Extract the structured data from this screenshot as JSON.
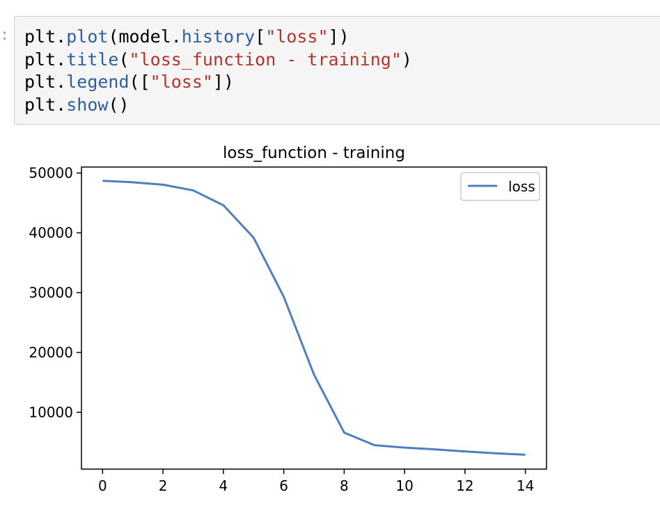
{
  "notebook": {
    "prompt": ":",
    "code_lines": [
      [
        {
          "text": "plt.",
          "style": "plain"
        },
        {
          "text": "plot",
          "style": "attr"
        },
        {
          "text": "(model.",
          "style": "plain"
        },
        {
          "text": "history",
          "style": "attr"
        },
        {
          "text": "[",
          "style": "plain"
        },
        {
          "text": "\"loss\"",
          "style": "str"
        },
        {
          "text": "])",
          "style": "plain"
        }
      ],
      [
        {
          "text": "plt.",
          "style": "plain"
        },
        {
          "text": "title",
          "style": "attr"
        },
        {
          "text": "(",
          "style": "plain"
        },
        {
          "text": "\"loss_function - training\"",
          "style": "str"
        },
        {
          "text": ")",
          "style": "plain"
        }
      ],
      [
        {
          "text": "plt.",
          "style": "plain"
        },
        {
          "text": "legend",
          "style": "attr"
        },
        {
          "text": "([",
          "style": "plain"
        },
        {
          "text": "\"loss\"",
          "style": "str"
        },
        {
          "text": "])",
          "style": "plain"
        }
      ],
      [
        {
          "text": "plt.",
          "style": "plain"
        },
        {
          "text": "show",
          "style": "attr"
        },
        {
          "text": "()",
          "style": "plain"
        }
      ]
    ],
    "colors": {
      "attr": "#2f5e9e",
      "str": "#b4342c",
      "plain": "#000000"
    }
  },
  "chart_data": {
    "type": "line",
    "title": "loss_function - training",
    "xlabel": "",
    "ylabel": "",
    "x": [
      0,
      1,
      2,
      3,
      4,
      5,
      6,
      7,
      8,
      9,
      10,
      11,
      12,
      13,
      14
    ],
    "series": [
      {
        "name": "loss",
        "color": "#4c7fbf",
        "values": [
          48700,
          48450,
          48050,
          47100,
          44600,
          39200,
          29300,
          16300,
          6600,
          4500,
          4100,
          3800,
          3450,
          3150,
          2900
        ]
      }
    ],
    "xlim": [
      -0.7,
      14.7
    ],
    "ylim": [
      500,
      51000
    ],
    "xticks": [
      0,
      2,
      4,
      6,
      8,
      10,
      12,
      14
    ],
    "yticks": [
      10000,
      20000,
      30000,
      40000,
      50000
    ],
    "grid": false,
    "legend_position": "top-right"
  }
}
